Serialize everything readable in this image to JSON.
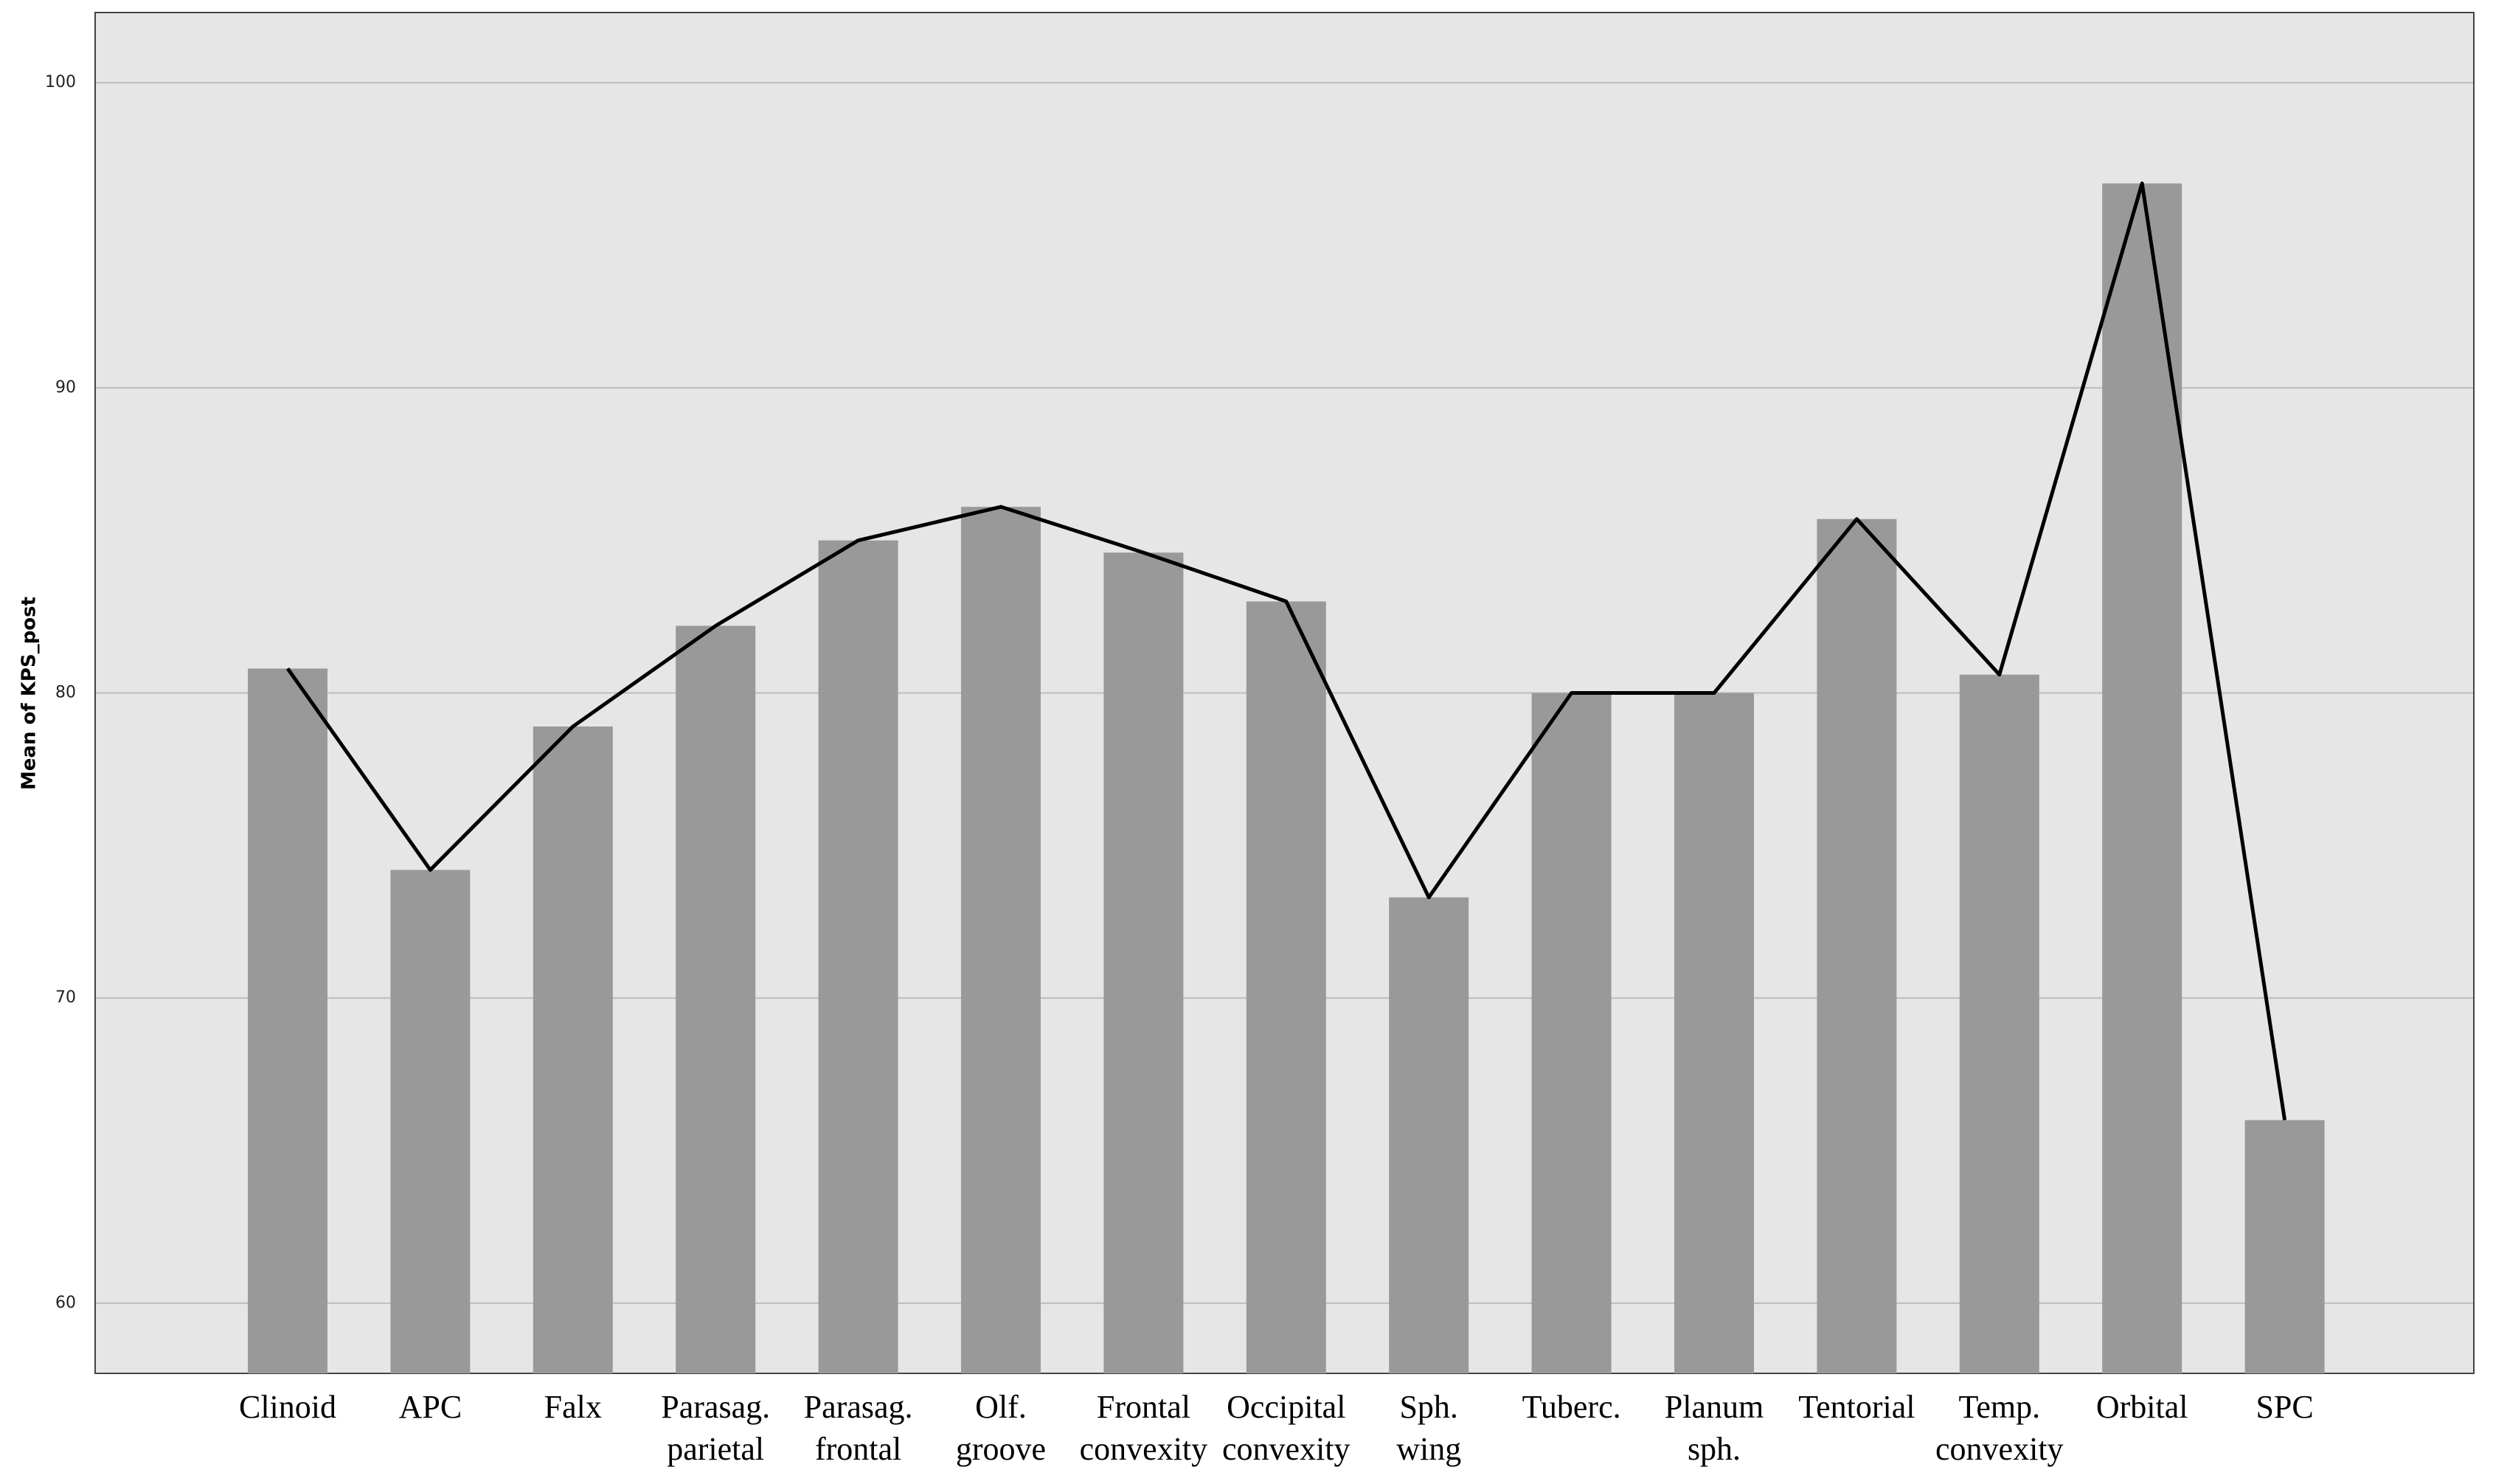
{
  "chart_data": {
    "type": "bar-line",
    "y_label": "Mean of KPS_post",
    "categories": [
      [
        "Clinoid"
      ],
      [
        "APC"
      ],
      [
        "Falx"
      ],
      [
        "Parasag.",
        "parietal"
      ],
      [
        "Parasag.",
        "frontal"
      ],
      [
        "Olf.",
        "groove"
      ],
      [
        "Frontal",
        "convexity"
      ],
      [
        "Occipital",
        "convexity"
      ],
      [
        "Sph.",
        "wing"
      ],
      [
        "Tuberc."
      ],
      [
        "Planum",
        "sph."
      ],
      [
        "Tentorial"
      ],
      [
        "Temp.",
        "convexity"
      ],
      [
        "Orbital"
      ],
      [
        "SPC"
      ]
    ],
    "values": [
      80.8,
      74.2,
      78.9,
      82.2,
      85.0,
      86.1,
      84.6,
      83.0,
      73.3,
      80.0,
      80.0,
      85.7,
      80.6,
      96.7,
      66.0
    ],
    "color": "#999999",
    "line_color": "#000000",
    "ylim": [
      57.7,
      102.3
    ],
    "yticks": [
      60,
      70,
      80,
      90,
      100
    ],
    "grid": true
  }
}
